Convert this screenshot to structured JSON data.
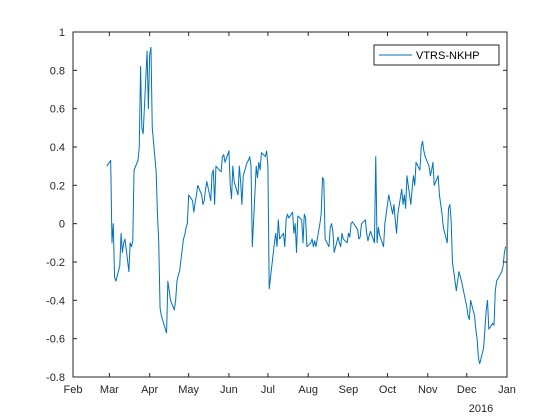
{
  "chart_data": {
    "type": "line",
    "title": "",
    "xlabel": "",
    "ylabel": "",
    "x_range": [
      "2015-02-01",
      "2016-01-01"
    ],
    "ylim": [
      -0.8,
      1
    ],
    "grid": false,
    "legend_placement": "top-right",
    "x_ticks": [
      {
        "date": "2015-02-01",
        "label": "Feb"
      },
      {
        "date": "2015-03-01",
        "label": "Mar"
      },
      {
        "date": "2015-04-01",
        "label": "Apr"
      },
      {
        "date": "2015-05-01",
        "label": "May"
      },
      {
        "date": "2015-06-01",
        "label": "Jun"
      },
      {
        "date": "2015-07-01",
        "label": "Jul"
      },
      {
        "date": "2015-08-01",
        "label": "Aug"
      },
      {
        "date": "2015-09-01",
        "label": "Sep"
      },
      {
        "date": "2015-10-01",
        "label": "Oct"
      },
      {
        "date": "2015-11-01",
        "label": "Nov"
      },
      {
        "date": "2015-12-01",
        "label": "Dec"
      },
      {
        "date": "2016-01-01",
        "label": "Jan"
      }
    ],
    "x_secondary_label": "2016",
    "y_ticks": [
      {
        "value": 1,
        "label": "1"
      },
      {
        "value": 0.8,
        "label": "0.8"
      },
      {
        "value": 0.6,
        "label": "0.6"
      },
      {
        "value": 0.4,
        "label": "0.4"
      },
      {
        "value": 0.2,
        "label": "0.2"
      },
      {
        "value": 0,
        "label": "0"
      },
      {
        "value": -0.2,
        "label": "-0.2"
      },
      {
        "value": -0.4,
        "label": "-0.4"
      },
      {
        "value": -0.6,
        "label": "-0.6"
      },
      {
        "value": -0.8,
        "label": "-0.8"
      }
    ],
    "series": [
      {
        "name": "VTRS-NKHP",
        "color": "#0072bd",
        "x": [
          "2015-02-27",
          "2015-03-02",
          "2015-03-03",
          "2015-03-04",
          "2015-03-05",
          "2015-03-06",
          "2015-03-09",
          "2015-03-10",
          "2015-03-11",
          "2015-03-12",
          "2015-03-13",
          "2015-03-16",
          "2015-03-17",
          "2015-03-18",
          "2015-03-19",
          "2015-03-20",
          "2015-03-23",
          "2015-03-24",
          "2015-03-25",
          "2015-03-26",
          "2015-03-27",
          "2015-03-30",
          "2015-03-31",
          "2015-04-01",
          "2015-04-02",
          "2015-04-03",
          "2015-04-06",
          "2015-04-07",
          "2015-04-08",
          "2015-04-09",
          "2015-04-10",
          "2015-04-13",
          "2015-04-14",
          "2015-04-15",
          "2015-04-16",
          "2015-04-17",
          "2015-04-20",
          "2015-04-21",
          "2015-04-22",
          "2015-04-23",
          "2015-04-24",
          "2015-04-27",
          "2015-04-28",
          "2015-04-29",
          "2015-04-30",
          "2015-05-01",
          "2015-05-04",
          "2015-05-05",
          "2015-05-06",
          "2015-05-07",
          "2015-05-08",
          "2015-05-11",
          "2015-05-12",
          "2015-05-13",
          "2015-05-14",
          "2015-05-15",
          "2015-05-18",
          "2015-05-19",
          "2015-05-20",
          "2015-05-21",
          "2015-05-22",
          "2015-05-26",
          "2015-05-27",
          "2015-05-28",
          "2015-05-29",
          "2015-06-01",
          "2015-06-02",
          "2015-06-03",
          "2015-06-04",
          "2015-06-05",
          "2015-06-08",
          "2015-06-09",
          "2015-06-10",
          "2015-06-11",
          "2015-06-12",
          "2015-06-15",
          "2015-06-16",
          "2015-06-17",
          "2015-06-18",
          "2015-06-19",
          "2015-06-22",
          "2015-06-23",
          "2015-06-24",
          "2015-06-25",
          "2015-06-26",
          "2015-06-29",
          "2015-06-30",
          "2015-07-01",
          "2015-07-02",
          "2015-07-06",
          "2015-07-07",
          "2015-07-08",
          "2015-07-09",
          "2015-07-10",
          "2015-07-13",
          "2015-07-14",
          "2015-07-15",
          "2015-07-16",
          "2015-07-17",
          "2015-07-20",
          "2015-07-21",
          "2015-07-22",
          "2015-07-23",
          "2015-07-24",
          "2015-07-27",
          "2015-07-28",
          "2015-07-29",
          "2015-07-30",
          "2015-07-31",
          "2015-08-03",
          "2015-08-04",
          "2015-08-05",
          "2015-08-06",
          "2015-08-07",
          "2015-08-10",
          "2015-08-11",
          "2015-08-12",
          "2015-08-13",
          "2015-08-14",
          "2015-08-17",
          "2015-08-18",
          "2015-08-19",
          "2015-08-20",
          "2015-08-21",
          "2015-08-24",
          "2015-08-25",
          "2015-08-26",
          "2015-08-27",
          "2015-08-28",
          "2015-08-31",
          "2015-09-01",
          "2015-09-02",
          "2015-09-03",
          "2015-09-04",
          "2015-09-08",
          "2015-09-09",
          "2015-09-10",
          "2015-09-11",
          "2015-09-14",
          "2015-09-15",
          "2015-09-16",
          "2015-09-17",
          "2015-09-18",
          "2015-09-21",
          "2015-09-22",
          "2015-09-23",
          "2015-09-24",
          "2015-09-25",
          "2015-09-28",
          "2015-09-29",
          "2015-09-30",
          "2015-10-01",
          "2015-10-02",
          "2015-10-05",
          "2015-10-06",
          "2015-10-07",
          "2015-10-08",
          "2015-10-09",
          "2015-10-12",
          "2015-10-13",
          "2015-10-14",
          "2015-10-15",
          "2015-10-16",
          "2015-10-19",
          "2015-10-20",
          "2015-10-21",
          "2015-10-22",
          "2015-10-23",
          "2015-10-26",
          "2015-10-27",
          "2015-10-28",
          "2015-10-29",
          "2015-10-30",
          "2015-11-02",
          "2015-11-03",
          "2015-11-04",
          "2015-11-05",
          "2015-11-06",
          "2015-11-09",
          "2015-11-10",
          "2015-11-11",
          "2015-11-12",
          "2015-11-13",
          "2015-11-16",
          "2015-11-17",
          "2015-11-18",
          "2015-11-19",
          "2015-11-20",
          "2015-11-23",
          "2015-11-24",
          "2015-11-25",
          "2015-11-27",
          "2015-11-30",
          "2015-12-01",
          "2015-12-02",
          "2015-12-03",
          "2015-12-04",
          "2015-12-07",
          "2015-12-08",
          "2015-12-09",
          "2015-12-10",
          "2015-12-11",
          "2015-12-14",
          "2015-12-15",
          "2015-12-16",
          "2015-12-17",
          "2015-12-18",
          "2015-12-21",
          "2015-12-22",
          "2015-12-23",
          "2015-12-24",
          "2015-12-28",
          "2015-12-29",
          "2015-12-30",
          "2015-12-31"
        ],
        "y": [
          0.3,
          0.33,
          -0.1,
          0.0,
          -0.28,
          -0.3,
          -0.22,
          -0.05,
          -0.15,
          -0.1,
          -0.08,
          -0.25,
          -0.1,
          -0.12,
          -0.09,
          0.28,
          0.33,
          0.4,
          0.82,
          0.5,
          0.47,
          0.9,
          0.6,
          0.88,
          0.92,
          0.5,
          0.27,
          0.05,
          -0.1,
          -0.44,
          -0.48,
          -0.55,
          -0.57,
          -0.3,
          -0.35,
          -0.4,
          -0.45,
          -0.4,
          -0.3,
          -0.27,
          -0.25,
          -0.08,
          -0.06,
          -0.02,
          0.0,
          0.15,
          0.12,
          0.06,
          0.11,
          0.15,
          0.2,
          0.15,
          0.1,
          0.12,
          0.18,
          0.22,
          0.12,
          0.26,
          0.28,
          0.1,
          0.3,
          0.27,
          0.35,
          0.36,
          0.32,
          0.38,
          0.2,
          0.13,
          0.3,
          0.22,
          0.15,
          0.3,
          0.22,
          0.1,
          0.25,
          0.32,
          0.33,
          0.35,
          0.3,
          -0.12,
          0.3,
          0.24,
          0.32,
          0.28,
          0.37,
          0.35,
          0.38,
          0.3,
          -0.34,
          -0.1,
          -0.05,
          -0.12,
          0.02,
          -0.08,
          -0.05,
          -0.12,
          0.02,
          0.05,
          0.03,
          0.06,
          -0.05,
          0.0,
          -0.15,
          0.04,
          0.02,
          -0.1,
          0.05,
          0.03,
          -0.12,
          -0.1,
          -0.08,
          -0.12,
          -0.09,
          -0.12,
          0.0,
          0.05,
          0.24,
          0.23,
          -0.08,
          -0.12,
          -0.02,
          0.0,
          -0.04,
          -0.15,
          -0.07,
          -0.1,
          -0.12,
          -0.05,
          -0.08,
          -0.1,
          -0.05,
          -0.07,
          0.0,
          0.01,
          -0.03,
          -0.08,
          -0.07,
          0.0,
          0.02,
          -0.05,
          -0.09,
          -0.06,
          -0.04,
          -0.1,
          0.35,
          -0.1,
          -0.02,
          -0.06,
          -0.12,
          0.0,
          0.05,
          0.1,
          0.15,
          0.05,
          0.1,
          0.02,
          -0.05,
          0.05,
          0.18,
          0.1,
          0.15,
          0.08,
          0.25,
          0.1,
          0.18,
          0.25,
          0.2,
          0.32,
          0.28,
          0.4,
          0.43,
          0.38,
          0.35,
          0.3,
          0.25,
          0.28,
          0.32,
          0.2,
          0.25,
          0.15,
          0.1,
          0.05,
          -0.02,
          -0.1,
          0.08,
          0.1,
          0.02,
          -0.2,
          -0.35,
          -0.3,
          -0.25,
          -0.3,
          -0.4,
          -0.43,
          -0.48,
          -0.5,
          -0.4,
          -0.48,
          -0.55,
          -0.6,
          -0.7,
          -0.73,
          -0.65,
          -0.55,
          -0.45,
          -0.4,
          -0.55,
          -0.52,
          -0.53,
          -0.35,
          -0.3,
          -0.25,
          -0.22,
          -0.15,
          -0.12
        ]
      }
    ]
  }
}
